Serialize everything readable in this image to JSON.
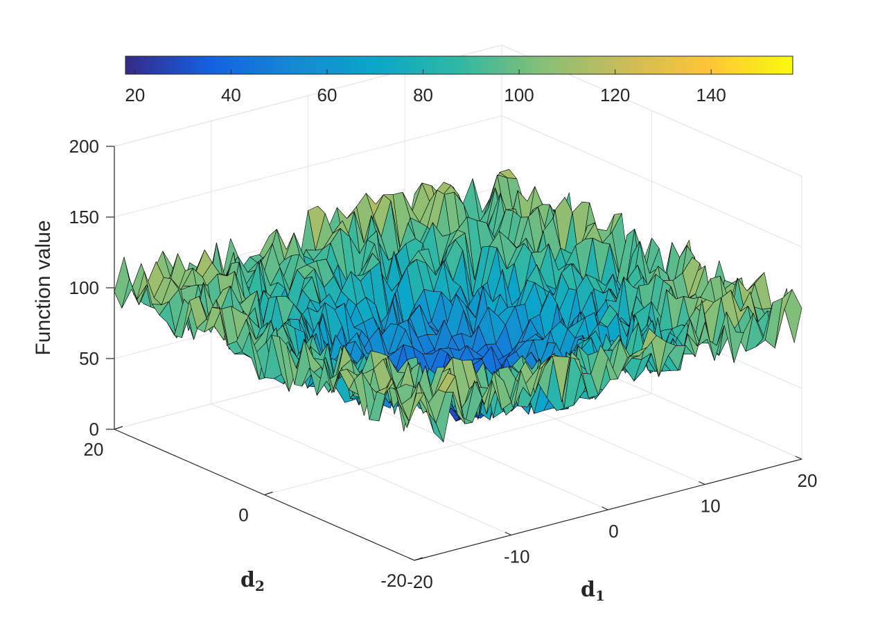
{
  "chart_data": {
    "type": "surface",
    "zlabel": "Function value",
    "xlabel_main": "d",
    "xlabel_sub": "1",
    "ylabel_main": "d",
    "ylabel_sub": "2",
    "xlim": [
      -20,
      20
    ],
    "ylim": [
      -20,
      20
    ],
    "zlim": [
      0,
      200
    ],
    "x_ticks": [
      "-20",
      "-10",
      "0",
      "10",
      "20"
    ],
    "y_ticks": [
      "-20",
      "0",
      "20"
    ],
    "z_ticks": [
      "0",
      "50",
      "100",
      "150",
      "200"
    ],
    "colorbar": {
      "location": "top",
      "range": [
        18,
        157
      ],
      "ticks": [
        "20",
        "40",
        "60",
        "80",
        "100",
        "120",
        "140"
      ],
      "colormap": "parula"
    },
    "surface": {
      "description": "noisy V-shaped valley",
      "grid": "-20:1:20 x -20:1:20",
      "minimum_at": [
        0,
        0
      ],
      "min_value": 18,
      "edge_level": 100,
      "max_value": 157,
      "noise_amplitude": 22
    },
    "grid": true,
    "colors": {
      "axis": "#262626",
      "grid": "#e3e3e3",
      "edge": "#000000"
    }
  }
}
